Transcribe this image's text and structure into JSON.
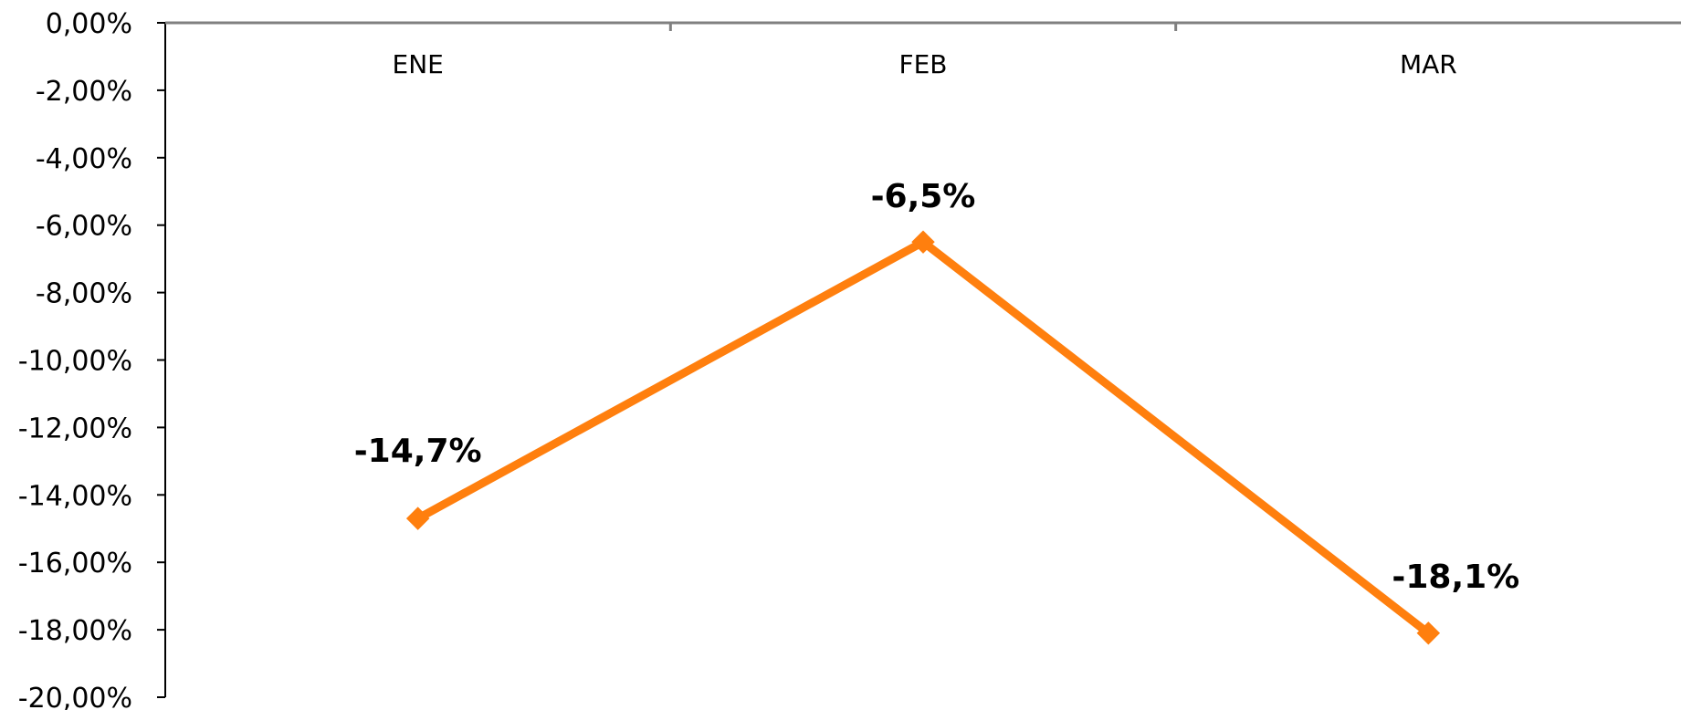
{
  "chart_data": {
    "type": "line",
    "categories": [
      "ENE",
      "FEB",
      "MAR"
    ],
    "series": [
      {
        "values": [
          -14.7,
          -6.5,
          -18.1
        ],
        "data_labels": [
          "-14,7%",
          "-6,5%",
          "-18,1%"
        ],
        "color": "#FF7F0E"
      }
    ],
    "ylim": [
      -20,
      0
    ],
    "yticks": [
      0,
      -2,
      -4,
      -6,
      -8,
      -10,
      -12,
      -14,
      -16,
      -18,
      -20
    ],
    "ytick_labels": [
      "0,00%",
      "-2,00%",
      "-4,00%",
      "-6,00%",
      "-8,00%",
      "-10,00%",
      "-12,00%",
      "-14,00%",
      "-16,00%",
      "-18,00%",
      "-20,00%"
    ],
    "x_axis_position": "top",
    "grid": false,
    "legend": "none",
    "axis_color": "#808080"
  }
}
